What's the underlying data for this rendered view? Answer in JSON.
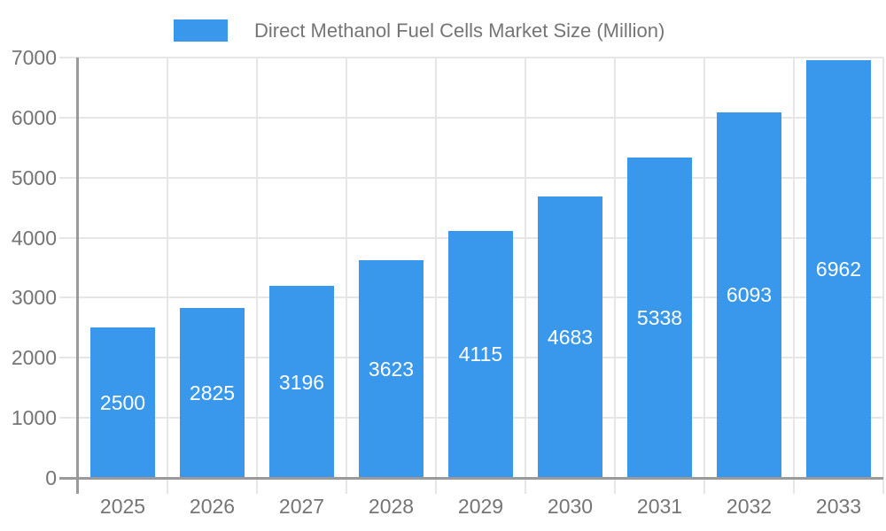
{
  "chart_data": {
    "type": "bar",
    "title": "Direct Methanol Fuel Cells Market Size (Million)",
    "categories": [
      "2025",
      "2026",
      "2027",
      "2028",
      "2029",
      "2030",
      "2031",
      "2032",
      "2033"
    ],
    "values": [
      2500,
      2825,
      3196,
      3623,
      4115,
      4683,
      5338,
      6093,
      6962
    ],
    "xlabel": "",
    "ylabel": "",
    "ylim": [
      0,
      7000
    ],
    "y_ticks": [
      0,
      1000,
      2000,
      3000,
      4000,
      5000,
      6000,
      7000
    ],
    "grid": true,
    "legend_position": "top",
    "value_label_position": "inside-center",
    "colors": {
      "bar": "#3998EC",
      "grid": "#E6E6E6",
      "axis": "#9A9A9A",
      "tick_label": "#757575",
      "legend_text": "#757575",
      "value_label": "#FFFFFF",
      "background": "#FFFFFF"
    }
  }
}
